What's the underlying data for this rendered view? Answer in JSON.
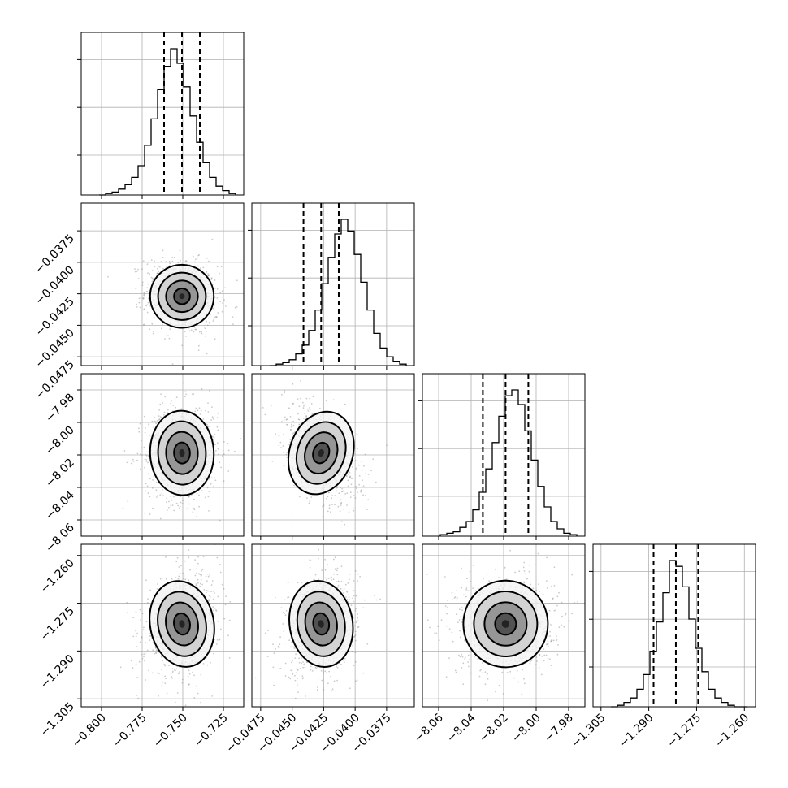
{
  "chart_data": {
    "type": "corner",
    "title": "",
    "parameters": [
      {
        "index": 0,
        "range": [
          -0.8125,
          -0.7125
        ],
        "ticks": [
          -0.8,
          -0.775,
          -0.75,
          -0.725
        ],
        "tick_labels": [
          "−0.800",
          "−0.775",
          "−0.750",
          "−0.725"
        ],
        "median": -0.7505,
        "quantiles": [
          -0.7615,
          -0.7505,
          -0.7395
        ],
        "hist_bins": [
          0,
          1,
          2,
          4,
          7,
          12,
          20,
          34,
          52,
          72,
          88,
          100,
          90,
          74,
          54,
          36,
          22,
          12,
          6,
          3,
          1
        ]
      },
      {
        "index": 1,
        "range": [
          -0.0482,
          -0.0353
        ],
        "ticks": [
          -0.0475,
          -0.045,
          -0.0425,
          -0.04,
          -0.0375
        ],
        "tick_labels": [
          "−0.0475",
          "−0.0450",
          "−0.0425",
          "−0.0400",
          "−0.0375"
        ],
        "median": -0.0427,
        "quantiles": [
          -0.0441,
          -0.0427,
          -0.0413
        ],
        "hist_bins": [
          0,
          1,
          2,
          4,
          8,
          14,
          24,
          38,
          56,
          74,
          90,
          100,
          92,
          76,
          57,
          38,
          22,
          12,
          6,
          3,
          1
        ]
      },
      {
        "index": 2,
        "range": [
          -8.07,
          -7.97
        ],
        "ticks": [
          -8.06,
          -8.04,
          -8.02,
          -8.0,
          -7.98
        ],
        "tick_labels": [
          "−8.06",
          "−8.04",
          "−8.02",
          "−8.00",
          "−7.98"
        ],
        "median": -8.0188,
        "quantiles": [
          -8.0328,
          -8.0188,
          -8.0048
        ],
        "hist_bins": [
          1,
          2,
          3,
          6,
          10,
          18,
          30,
          46,
          64,
          82,
          96,
          100,
          90,
          72,
          52,
          34,
          20,
          10,
          5,
          2,
          1
        ]
      },
      {
        "index": 3,
        "range": [
          -1.3075,
          -1.2565
        ],
        "ticks": [
          -1.305,
          -1.29,
          -1.275,
          -1.26
        ],
        "tick_labels": [
          "−1.305",
          "−1.290",
          "−1.275",
          "−1.260"
        ],
        "median": -1.2815,
        "quantiles": [
          -1.2885,
          -1.2815,
          -1.2745
        ],
        "hist_bins": [
          0,
          1,
          3,
          6,
          12,
          22,
          38,
          58,
          78,
          100,
          96,
          82,
          60,
          40,
          24,
          12,
          6,
          3,
          1,
          0,
          0
        ]
      }
    ],
    "pairs": [
      {
        "x": 0,
        "y": 1,
        "center": [
          -0.7505,
          -0.0427
        ],
        "spread": [
          0.0098,
          0.00125
        ],
        "corr": -0.15
      },
      {
        "x": 0,
        "y": 2,
        "center": [
          -0.7505,
          -8.0188
        ],
        "spread": [
          0.0098,
          0.013
        ],
        "corr": 0.05
      },
      {
        "x": 1,
        "y": 2,
        "center": [
          -0.0427,
          -8.0188
        ],
        "spread": [
          0.00125,
          0.013
        ],
        "corr": -0.45
      },
      {
        "x": 0,
        "y": 3,
        "center": [
          -0.7505,
          -1.2815
        ],
        "spread": [
          0.0098,
          0.0068
        ],
        "corr": 0.25
      },
      {
        "x": 1,
        "y": 3,
        "center": [
          -0.0427,
          -1.2815
        ],
        "spread": [
          0.00125,
          0.0068
        ],
        "corr": 0.2
      },
      {
        "x": 2,
        "y": 3,
        "center": [
          -8.0188,
          -1.2815
        ],
        "spread": [
          0.013,
          0.0068
        ],
        "corr": 0.05
      }
    ],
    "grid": true,
    "contour_levels_sigma": [
      0.5,
      1.0,
      1.5,
      2.0
    ],
    "colors": {
      "line": "#000000",
      "grid": "#b0b0b0",
      "scatter": "#8c8c8c",
      "density_dark": "#2a2a2a",
      "density_light": "#f4f4f4"
    }
  }
}
